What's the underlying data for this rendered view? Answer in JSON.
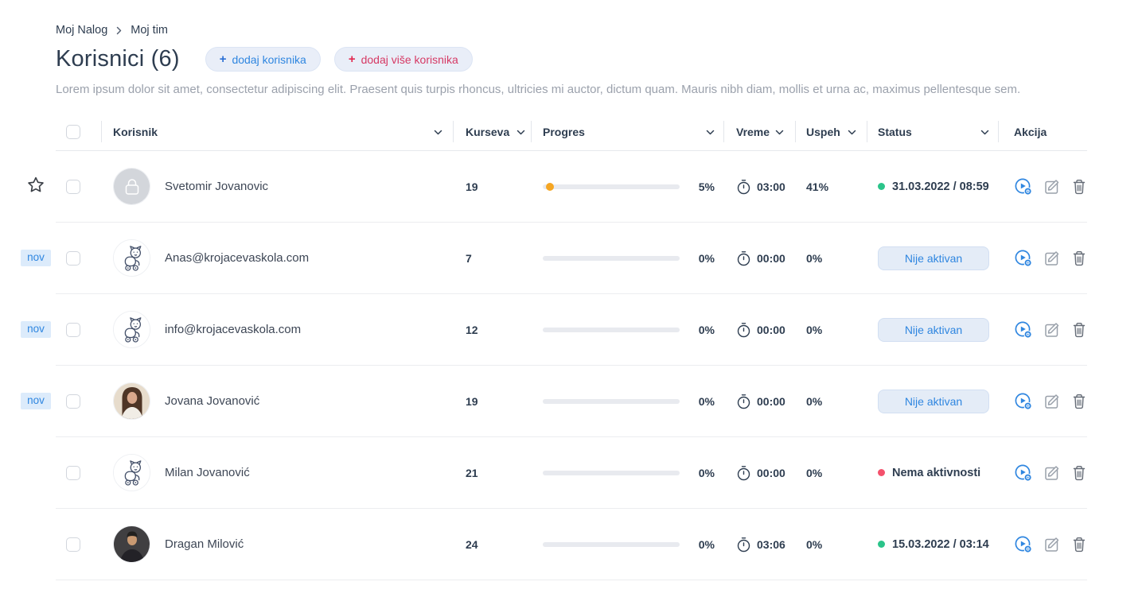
{
  "breadcrumb": {
    "items": [
      {
        "label": "Moj Nalog"
      },
      {
        "label": "Moj tim"
      }
    ]
  },
  "header": {
    "title": "Korisnici (6)",
    "buttons": {
      "add_user": {
        "plus": "+",
        "label": "dodaj korisnika"
      },
      "add_bulk": {
        "plus": "+",
        "label": "dodaj više korisnika"
      }
    },
    "description": "Lorem ipsum dolor sit amet, consectetur adipiscing elit. Praesent quis turpis rhoncus, ultricies mi auctor, dictum quam. Mauris nibh diam, mollis et urna ac, maximus pellentesque sem."
  },
  "table": {
    "columns": [
      {
        "label": "Korisnik",
        "sortable": true
      },
      {
        "label": "Kurseva",
        "sortable": true
      },
      {
        "label": "Progres",
        "sortable": true
      },
      {
        "label": "Vreme",
        "sortable": true
      },
      {
        "label": "Uspeh",
        "sortable": true
      },
      {
        "label": "Status",
        "sortable": true
      },
      {
        "label": "Akcija",
        "sortable": false
      }
    ],
    "rows": [
      {
        "name": "Svetomir Jovanovic",
        "avatar": "lock",
        "starred": true,
        "badge": "",
        "courses": "19",
        "progress_percent": "5%",
        "progress_value": 5,
        "time": "03:00",
        "success": "41%",
        "status": {
          "type": "active",
          "label": "31.03.2022 / 08:59"
        }
      },
      {
        "name": "Anas@krojacevaskola.com",
        "avatar": "cat",
        "starred": false,
        "badge": "nov",
        "courses": "7",
        "progress_percent": "0%",
        "progress_value": 0,
        "time": "00:00",
        "success": "0%",
        "status": {
          "type": "inactive",
          "label": "Nije aktivan"
        }
      },
      {
        "name": "info@krojacevaskola.com",
        "avatar": "cat",
        "starred": false,
        "badge": "nov",
        "courses": "12",
        "progress_percent": "0%",
        "progress_value": 0,
        "time": "00:00",
        "success": "0%",
        "status": {
          "type": "inactive",
          "label": "Nije aktivan"
        }
      },
      {
        "name": "Jovana Jovanović",
        "avatar": "photo-female",
        "starred": false,
        "badge": "nov",
        "courses": "19",
        "progress_percent": "0%",
        "progress_value": 0,
        "time": "00:00",
        "success": "0%",
        "status": {
          "type": "inactive",
          "label": "Nije aktivan"
        }
      },
      {
        "name": "Milan Jovanović",
        "avatar": "cat",
        "starred": false,
        "badge": "",
        "courses": "21",
        "progress_percent": "0%",
        "progress_value": 0,
        "time": "00:00",
        "success": "0%",
        "status": {
          "type": "none",
          "label": "Nema aktivnosti"
        }
      },
      {
        "name": "Dragan Milović",
        "avatar": "photo-male",
        "starred": false,
        "badge": "",
        "courses": "24",
        "progress_percent": "0%",
        "progress_value": 0,
        "time": "03:06",
        "success": "0%",
        "status": {
          "type": "active",
          "label": "15.03.2022 / 03:14"
        }
      }
    ]
  },
  "icons": {
    "breadcrumb_separator": "chevron-right-icon",
    "sort": "chevron-down-icon",
    "time": "stopwatch-icon",
    "row_marker": "star-icon",
    "actions": [
      "assign-course-icon",
      "edit-icon",
      "delete-icon"
    ]
  },
  "colors": {
    "accent_blue": "#2f86e0",
    "accent_red": "#d63964",
    "status_green": "#2bc48a",
    "status_red": "#f4516c",
    "progress_orange": "#f5a623",
    "badge_bg": "#dcebfb",
    "text_dark": "#2e3d50",
    "text_gray": "#9ba1ac"
  }
}
